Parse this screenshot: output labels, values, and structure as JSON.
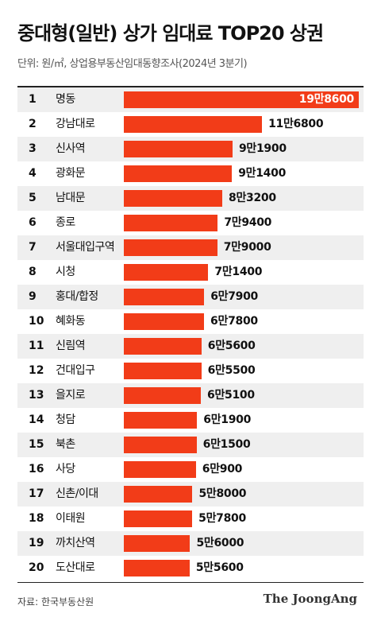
{
  "title": "중대형(일반) 상가 임대료 TOP20 상권",
  "subtitle": "단위: 원/㎡,  상업용부동산임대동향조사(2024년 3분기)",
  "source": "자료: 한국부동산원",
  "logo": "The JoongAng",
  "colors": {
    "bar": "#f23c18",
    "row_shade": "#efefef"
  },
  "chart_data": {
    "type": "bar",
    "orientation": "horizontal",
    "title": "중대형(일반) 상가 임대료 TOP20 상권",
    "unit": "원/㎡",
    "ranks": [
      "1",
      "2",
      "3",
      "4",
      "5",
      "6",
      "7",
      "8",
      "9",
      "10",
      "11",
      "12",
      "13",
      "14",
      "15",
      "16",
      "17",
      "18",
      "19",
      "20"
    ],
    "categories": [
      "명동",
      "강남대로",
      "신사역",
      "광화문",
      "남대문",
      "종로",
      "서울대입구역",
      "시청",
      "홍대/합정",
      "혜화동",
      "신림역",
      "건대입구",
      "을지로",
      "청담",
      "북촌",
      "사당",
      "신촌/이대",
      "이태원",
      "까치산역",
      "도산대로"
    ],
    "values": [
      198600,
      116800,
      91900,
      91400,
      83200,
      79400,
      79000,
      71400,
      67900,
      67800,
      65600,
      65500,
      65100,
      61900,
      61500,
      60900,
      58000,
      57800,
      56000,
      55600
    ],
    "labels": [
      "19만8600",
      "11만6800",
      "9만1900",
      "9만1400",
      "8만3200",
      "7만9400",
      "7만9000",
      "7만1400",
      "6만7900",
      "6만7800",
      "6만5600",
      "6만5500",
      "6만5100",
      "6만1900",
      "6만1500",
      "6만900",
      "5만8000",
      "5만7800",
      "5만6000",
      "5만5600"
    ],
    "label_inside_first_bar": true,
    "alternating_row_shading": true,
    "grid": false
  }
}
